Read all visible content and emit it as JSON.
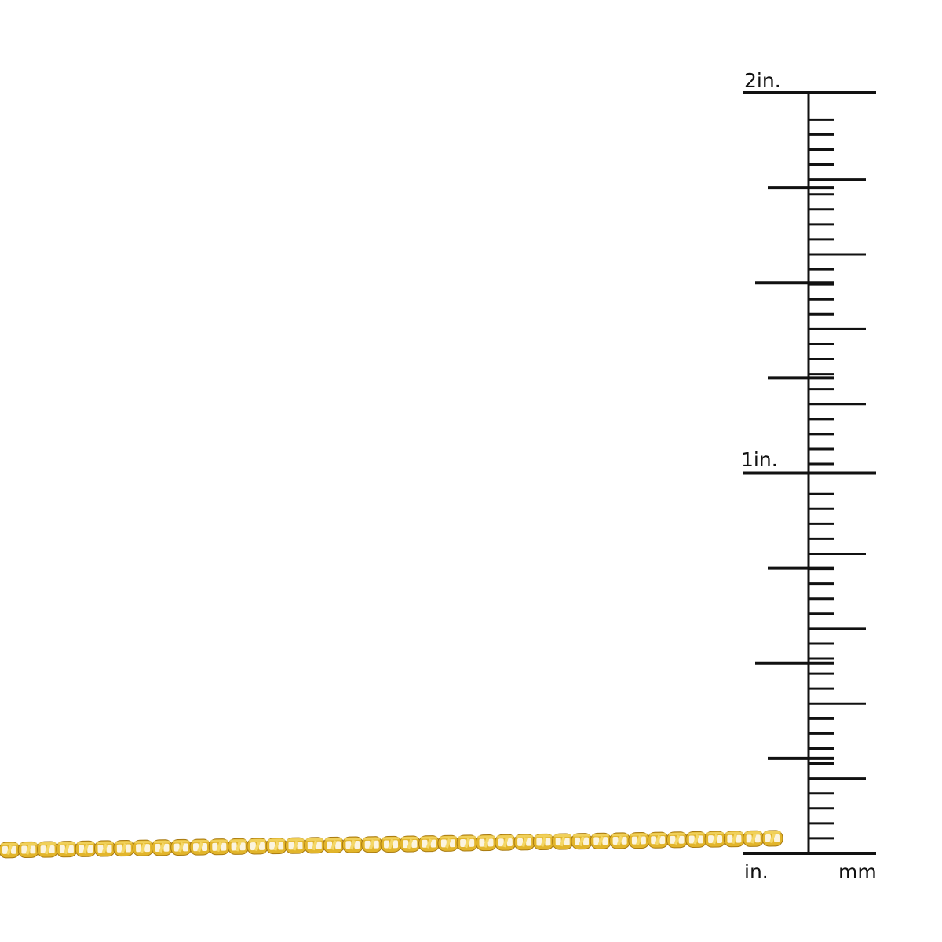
{
  "ruler": {
    "labels": {
      "two_inch": "2in.",
      "one_inch": "1in.",
      "inch_unit": "in.",
      "mm_unit": "mm"
    },
    "range_inches": [
      0,
      2
    ],
    "inch_side_tick_interval_in": 0.25,
    "mm_side_tick_interval_mm": 1,
    "mm_major_tick_every_mm": 5,
    "color": "#111111"
  },
  "chain": {
    "style": "mariner-link",
    "colors": {
      "gold": "#e2b52b",
      "gold_light": "#f4d766",
      "gold_dark": "#a87a10"
    }
  }
}
